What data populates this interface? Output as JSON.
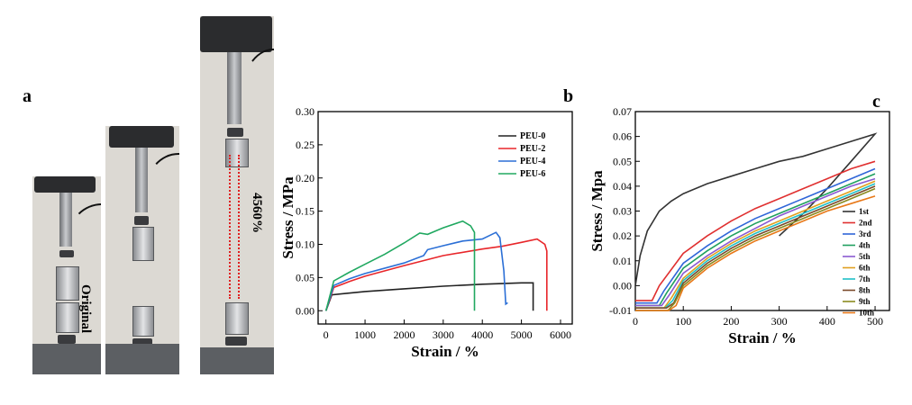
{
  "figure": {
    "panel_a_label": "a",
    "panel_b_label": "b",
    "panel_c_label": "c",
    "photo_original_label": "Original",
    "photo_stretched_label": "4560%"
  },
  "chart_data": [
    {
      "type": "line",
      "panel": "b",
      "xlabel": "Strain / %",
      "ylabel": "Stress / MPa",
      "xlim": [
        -200,
        6300
      ],
      "ylim": [
        -0.02,
        0.3
      ],
      "xticks": [
        0,
        1000,
        2000,
        3000,
        4000,
        5000,
        6000
      ],
      "yticks": [
        0.0,
        0.05,
        0.1,
        0.15,
        0.2,
        0.25,
        0.3
      ],
      "ytick_labels": [
        "0.00",
        "0.05",
        "0.10",
        "0.15",
        "0.20",
        "0.25",
        "0.30"
      ],
      "legend_position": "top-right",
      "series": [
        {
          "name": "PEU-0",
          "color": "#222222",
          "x": [
            0,
            150,
            500,
            1000,
            2000,
            3000,
            4000,
            5000,
            5300,
            5300
          ],
          "y": [
            0,
            0.024,
            0.026,
            0.029,
            0.033,
            0.037,
            0.04,
            0.042,
            0.042,
            0.0
          ]
        },
        {
          "name": "PEU-2",
          "color": "#e8262a",
          "x": [
            0,
            200,
            600,
            1000,
            2000,
            3000,
            4000,
            4500,
            5000,
            5400,
            5600,
            5650,
            5650
          ],
          "y": [
            0,
            0.035,
            0.044,
            0.052,
            0.068,
            0.083,
            0.093,
            0.097,
            0.103,
            0.108,
            0.1,
            0.09,
            0.0
          ]
        },
        {
          "name": "PEU-4",
          "color": "#2b6fd6",
          "x": [
            0,
            200,
            600,
            1000,
            2000,
            2500,
            2600,
            3000,
            3500,
            4000,
            4350,
            4450,
            4550,
            4600,
            4650
          ],
          "y": [
            0,
            0.038,
            0.048,
            0.056,
            0.072,
            0.083,
            0.092,
            0.098,
            0.105,
            0.108,
            0.118,
            0.11,
            0.06,
            0.01,
            0.012
          ]
        },
        {
          "name": "PEU-6",
          "color": "#20a860",
          "x": [
            0,
            200,
            600,
            1000,
            1500,
            2000,
            2400,
            2600,
            3000,
            3500,
            3700,
            3800,
            3800
          ],
          "y": [
            0,
            0.045,
            0.058,
            0.07,
            0.085,
            0.102,
            0.117,
            0.115,
            0.125,
            0.135,
            0.128,
            0.118,
            0.0
          ]
        }
      ]
    },
    {
      "type": "line",
      "panel": "c",
      "xlabel": "Strain / %",
      "ylabel": "Stress / Mpa",
      "xlim": [
        0,
        530
      ],
      "ylim": [
        -0.01,
        0.07
      ],
      "xticks": [
        0,
        100,
        200,
        300,
        400,
        500
      ],
      "yticks": [
        -0.01,
        0.0,
        0.01,
        0.02,
        0.03,
        0.04,
        0.05,
        0.06,
        0.07
      ],
      "ytick_labels": [
        "-0.01",
        "0.00",
        "0.01",
        "0.02",
        "0.03",
        "0.04",
        "0.05",
        "0.06",
        "0.07"
      ],
      "legend_position": "bottom-right",
      "series": [
        {
          "name": "1st",
          "color": "#333333",
          "x": [
            0,
            10,
            25,
            50,
            75,
            100,
            150,
            200,
            250,
            300,
            350,
            400,
            450,
            500,
            450,
            400,
            350,
            300
          ],
          "y": [
            0.0,
            0.012,
            0.022,
            0.03,
            0.034,
            0.037,
            0.041,
            0.044,
            0.047,
            0.05,
            0.052,
            0.055,
            0.058,
            0.061,
            0.05,
            0.039,
            0.029,
            0.02
          ]
        },
        {
          "name": "2nd",
          "color": "#e03030",
          "x": [
            0,
            35,
            50,
            100,
            150,
            200,
            250,
            300,
            350,
            400,
            450,
            500
          ],
          "y": [
            -0.006,
            -0.006,
            0.0,
            0.013,
            0.02,
            0.026,
            0.031,
            0.035,
            0.039,
            0.043,
            0.047,
            0.05
          ]
        },
        {
          "name": "3rd",
          "color": "#3066d8",
          "x": [
            0,
            45,
            60,
            100,
            150,
            200,
            250,
            300,
            350,
            400,
            450,
            500
          ],
          "y": [
            -0.007,
            -0.007,
            -0.002,
            0.009,
            0.016,
            0.022,
            0.027,
            0.031,
            0.035,
            0.039,
            0.043,
            0.047
          ]
        },
        {
          "name": "4th",
          "color": "#20a060",
          "x": [
            0,
            50,
            65,
            100,
            150,
            200,
            250,
            300,
            350,
            400,
            450,
            500
          ],
          "y": [
            -0.008,
            -0.008,
            -0.003,
            0.007,
            0.014,
            0.02,
            0.025,
            0.029,
            0.033,
            0.037,
            0.041,
            0.045
          ]
        },
        {
          "name": "5th",
          "color": "#8a5ad0",
          "x": [
            0,
            55,
            70,
            100,
            150,
            200,
            250,
            300,
            350,
            400,
            450,
            500
          ],
          "y": [
            -0.008,
            -0.008,
            -0.004,
            0.005,
            0.012,
            0.018,
            0.023,
            0.028,
            0.032,
            0.036,
            0.04,
            0.043
          ]
        },
        {
          "name": "6th",
          "color": "#e0a020",
          "x": [
            0,
            60,
            75,
            100,
            150,
            200,
            250,
            300,
            350,
            400,
            450,
            500
          ],
          "y": [
            -0.009,
            -0.009,
            -0.005,
            0.003,
            0.011,
            0.017,
            0.022,
            0.026,
            0.03,
            0.034,
            0.038,
            0.042
          ]
        },
        {
          "name": "7th",
          "color": "#20c0c8",
          "x": [
            0,
            62,
            78,
            100,
            150,
            200,
            250,
            300,
            350,
            400,
            450,
            500
          ],
          "y": [
            -0.009,
            -0.009,
            -0.006,
            0.002,
            0.01,
            0.016,
            0.021,
            0.025,
            0.029,
            0.033,
            0.037,
            0.041
          ]
        },
        {
          "name": "8th",
          "color": "#7a4a2a",
          "x": [
            0,
            65,
            80,
            100,
            150,
            200,
            250,
            300,
            350,
            400,
            450,
            500
          ],
          "y": [
            -0.009,
            -0.009,
            -0.007,
            0.001,
            0.009,
            0.015,
            0.02,
            0.024,
            0.028,
            0.032,
            0.036,
            0.04
          ]
        },
        {
          "name": "9th",
          "color": "#8a8a20",
          "x": [
            0,
            68,
            82,
            100,
            150,
            200,
            250,
            300,
            350,
            400,
            450,
            500
          ],
          "y": [
            -0.01,
            -0.01,
            -0.007,
            0.0,
            0.008,
            0.014,
            0.019,
            0.023,
            0.027,
            0.031,
            0.035,
            0.039
          ]
        },
        {
          "name": "10th",
          "color": "#e87818",
          "x": [
            0,
            70,
            85,
            100,
            150,
            200,
            250,
            300,
            350,
            400,
            450,
            500
          ],
          "y": [
            -0.01,
            -0.01,
            -0.008,
            -0.001,
            0.007,
            0.013,
            0.018,
            0.022,
            0.026,
            0.03,
            0.033,
            0.036
          ]
        }
      ]
    }
  ]
}
